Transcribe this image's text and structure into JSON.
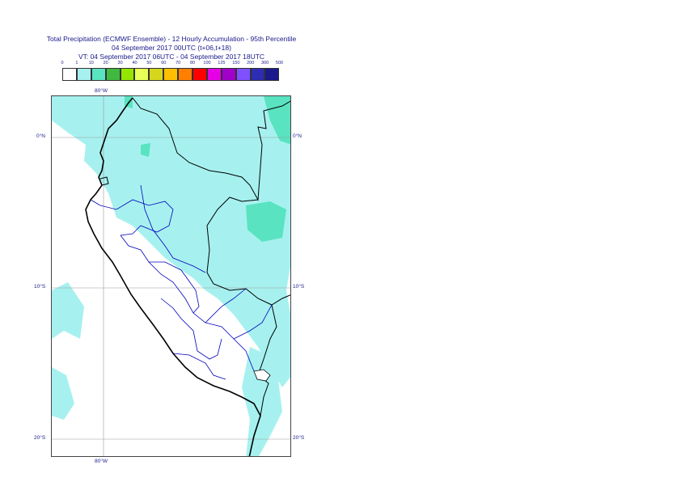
{
  "title": {
    "line1": "Total Precipitation (ECMWF Ensemble) - 12 Hourly Accumulation - 95th Percentile",
    "line2": "04 September 2017 00UTC (t+06,t+18)",
    "line3": "VT: 04 September 2017 06UTC - 04 September 2017 18UTC"
  },
  "legend": {
    "ticks": [
      "0",
      "1",
      "10",
      "20",
      "30",
      "40",
      "50",
      "60",
      "70",
      "80",
      "100",
      "125",
      "150",
      "200",
      "300",
      "500"
    ],
    "colors": [
      "#ffffff",
      "#a6f1ef",
      "#59e3c0",
      "#3fb93f",
      "#94e600",
      "#eaff57",
      "#d6d61c",
      "#ffbf00",
      "#ff8000",
      "#ff0000",
      "#e600e6",
      "#a000c8",
      "#7f50ff",
      "#2d2db4",
      "#1a1a8c"
    ]
  },
  "grid": {
    "lon_labels": [
      {
        "text": "80°W"
      }
    ],
    "lat_labels": [
      {
        "text": "0°N"
      },
      {
        "text": "10°S"
      },
      {
        "text": "20°S"
      }
    ]
  },
  "colors": {
    "light_precip": "#a6f1ef",
    "medium_precip": "#59e3c0",
    "coast": "#000000",
    "admin": "#0000bb",
    "grid": "#999999"
  }
}
